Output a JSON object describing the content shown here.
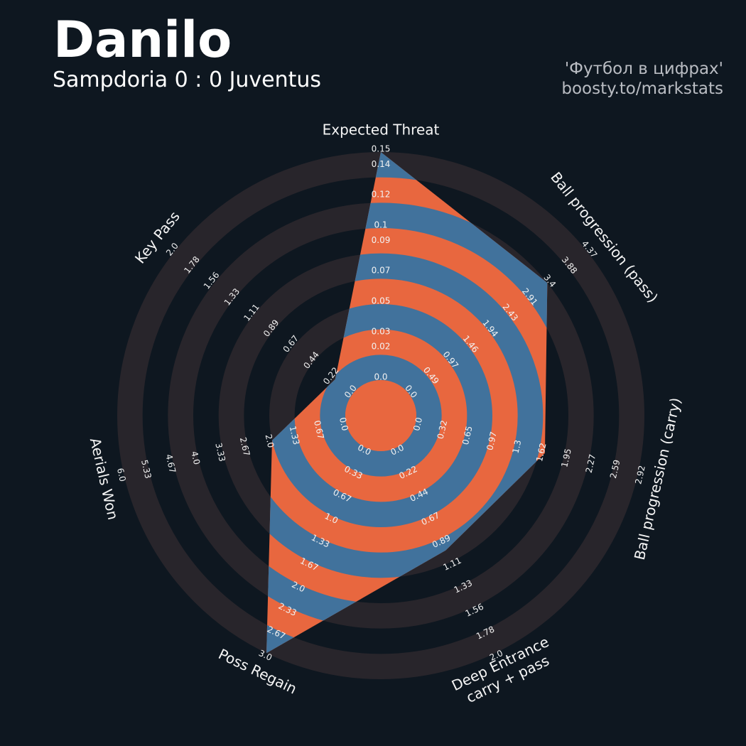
{
  "chart_data": {
    "type": "radar",
    "title": "Danilo",
    "subtitle": "Sampdoria 0 : 0 Juventus",
    "credits": [
      "'Футбол в цифрах'",
      "boosty.to/markstats"
    ],
    "axes": [
      {
        "label": "Expected Threat",
        "lim": [
          0,
          0.15
        ],
        "ticks": [
          {
            "value": 0,
            "label": "0.0"
          },
          0.02,
          0.03,
          0.05,
          0.07,
          0.09,
          0.1,
          0.12,
          0.14,
          0.15
        ]
      },
      {
        "label": "Ball progression (pass)",
        "lim": [
          0,
          4.37
        ],
        "ticks": [
          {
            "value": 0,
            "label": "0.0"
          },
          0.49,
          0.97,
          1.46,
          1.94,
          2.43,
          2.91,
          3.4,
          3.88,
          4.37
        ]
      },
      {
        "label": "Ball progression (carry)",
        "lim": [
          0,
          2.92
        ],
        "ticks": [
          {
            "value": 0,
            "label": "0.0"
          },
          0.32,
          0.65,
          0.97,
          1.3,
          1.62,
          1.95,
          2.27,
          2.59,
          2.92
        ]
      },
      {
        "label": [
          "Deep Entrance",
          "carry + pass"
        ],
        "lim": [
          0,
          2
        ],
        "ticks": [
          {
            "value": 0,
            "label": "0.0"
          },
          0.22,
          0.44,
          0.67,
          0.89,
          1.11,
          1.33,
          1.56,
          1.78,
          {
            "value": 2,
            "label": "2.0"
          }
        ]
      },
      {
        "label": "Poss Regain",
        "lim": [
          0,
          3
        ],
        "ticks": [
          {
            "value": 0,
            "label": "0.0"
          },
          0.33,
          0.67,
          {
            "value": 1,
            "label": "1.0"
          },
          1.33,
          1.67,
          {
            "value": 2,
            "label": "2.0"
          },
          2.33,
          2.67,
          {
            "value": 3,
            "label": "3.0"
          }
        ]
      },
      {
        "label": "Aerials Won",
        "lim": [
          0,
          6
        ],
        "ticks": [
          {
            "value": 0,
            "label": "0.0"
          },
          0.67,
          1.33,
          {
            "value": 2,
            "label": "2.0"
          },
          2.67,
          3.33,
          {
            "value": 4,
            "label": "4.0"
          },
          4.67,
          5.33,
          {
            "value": 6,
            "label": "6.0"
          }
        ]
      },
      {
        "label": "Key Pass",
        "lim": [
          0,
          2
        ],
        "ticks": [
          {
            "value": 0,
            "label": "0.0"
          },
          0.22,
          0.44,
          0.67,
          0.89,
          1.11,
          1.33,
          1.56,
          1.78,
          {
            "value": 2,
            "label": "2.0"
          }
        ]
      }
    ],
    "values": [
      0.15,
      3.4,
      1.7,
      1.0,
      3.0,
      2.0,
      0.2
    ],
    "colors": {
      "background": "#0e1720",
      "rings": "#28252b",
      "fill": "#41729c",
      "alt_fill": "#e8673f"
    }
  }
}
